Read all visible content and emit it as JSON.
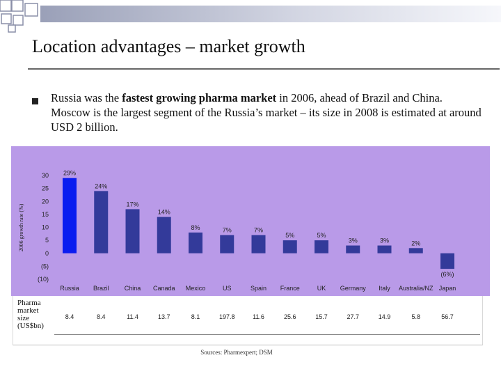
{
  "slide": {
    "title": "Location advantages – market growth",
    "bullet": {
      "t1": "Russia was the ",
      "bold": "fastest growing pharma market",
      "t2": " in 2006, ahead of Brazil and China. Moscow is the largest segment of the Russia’s market –  its size in 2008 is estimated at around USD 2 billion."
    },
    "source": "Sources: Pharmexpert; DSM"
  },
  "colors": {
    "chart_background": "#b99ae8",
    "bar_primary": "#0a1cf0",
    "bar_default": "#333a9a"
  },
  "chart_data": {
    "type": "bar",
    "title": "",
    "xlabel": "",
    "ylabel": "2006 growth rate (%)",
    "ylim": [
      -10,
      30
    ],
    "yticks": [
      30,
      25,
      20,
      15,
      10,
      5,
      0,
      -5,
      -10
    ],
    "ytick_labels": [
      "30",
      "25",
      "20",
      "15",
      "10",
      "5",
      "0",
      "(5)",
      "(10)"
    ],
    "grid": false,
    "categories": [
      "Russia",
      "Brazil",
      "China",
      "Canada",
      "Mexico",
      "US",
      "Spain",
      "France",
      "UK",
      "Germany",
      "Italy",
      "Australia/NZ",
      "Japan"
    ],
    "values": [
      29,
      24,
      17,
      14,
      8,
      7,
      7,
      5,
      5,
      3,
      3,
      2,
      -6
    ],
    "value_labels": [
      "29%",
      "24%",
      "17%",
      "14%",
      "8%",
      "7%",
      "7%",
      "5%",
      "5%",
      "3%",
      "3%",
      "2%",
      "(6%)"
    ],
    "highlight_index": 0,
    "market_size_label": "Pharma\nmarket\nsize\n(US$bn)",
    "market_size": [
      "8.4",
      "8.4",
      "11.4",
      "13.7",
      "8.1",
      "197.8",
      "11.6",
      "25.6",
      "15.7",
      "27.7",
      "14.9",
      "5.8",
      "56.7"
    ]
  }
}
